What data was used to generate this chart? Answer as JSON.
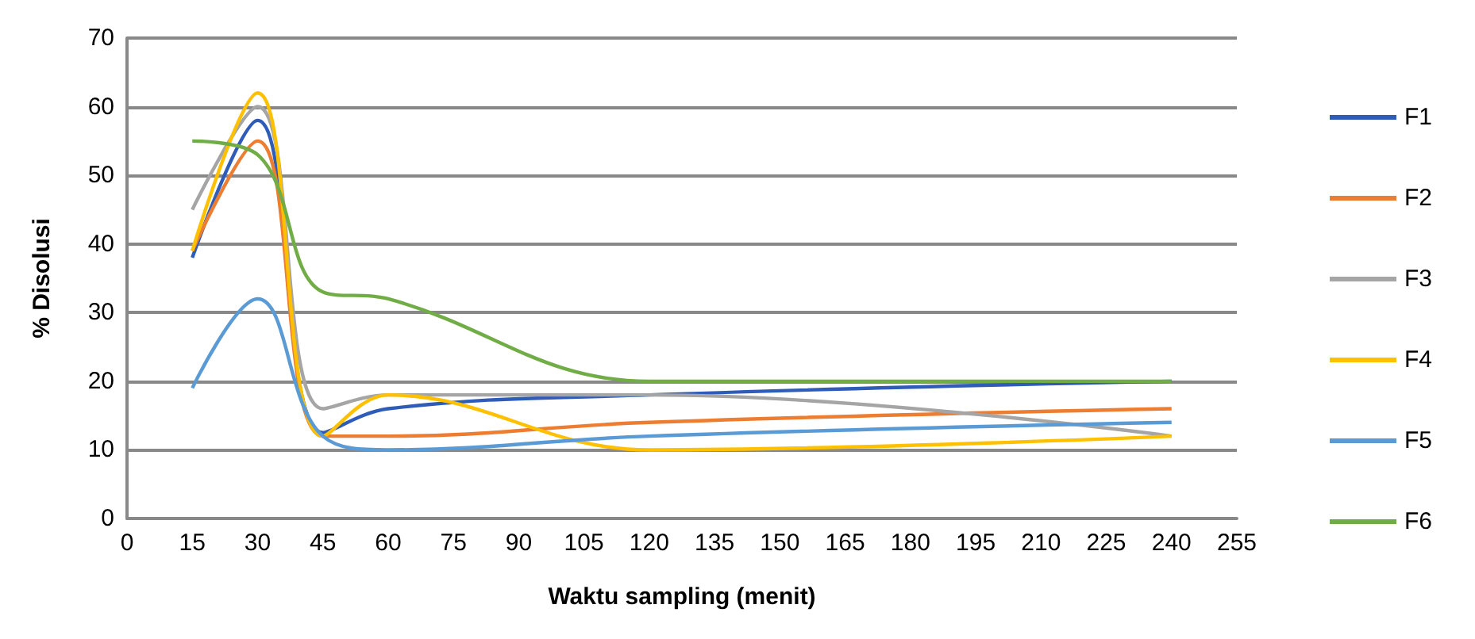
{
  "chart_data": {
    "type": "line",
    "xlabel": "Waktu sampling (menit)",
    "ylabel": "% Disolusi",
    "x": [
      15,
      30,
      45,
      60,
      120,
      240
    ],
    "xlim": [
      0,
      255
    ],
    "xticks": [
      0,
      15,
      30,
      45,
      60,
      75,
      90,
      105,
      120,
      135,
      150,
      165,
      180,
      195,
      210,
      225,
      240,
      255
    ],
    "ylim": [
      0,
      70
    ],
    "yticks": [
      0,
      10,
      20,
      30,
      40,
      50,
      60,
      70
    ],
    "grid": "y",
    "legend": "right",
    "marker": "none",
    "line_style": "solid",
    "series": [
      {
        "name": "F1",
        "color": "#2e5cb8",
        "values": [
          38,
          58,
          12.5,
          16,
          18,
          20
        ]
      },
      {
        "name": "F2",
        "color": "#ed7d31",
        "values": [
          39,
          55,
          12,
          12,
          14,
          16
        ]
      },
      {
        "name": "F3",
        "color": "#a5a5a5",
        "values": [
          45,
          60,
          16,
          18,
          18,
          12
        ]
      },
      {
        "name": "F4",
        "color": "#ffc000",
        "values": [
          39,
          62,
          12,
          18,
          10,
          12
        ]
      },
      {
        "name": "F5",
        "color": "#5b9bd5",
        "values": [
          19,
          32,
          12,
          10,
          12,
          14
        ]
      },
      {
        "name": "F6",
        "color": "#70ad47",
        "values": [
          55,
          53,
          33,
          32,
          20,
          20
        ]
      }
    ]
  }
}
